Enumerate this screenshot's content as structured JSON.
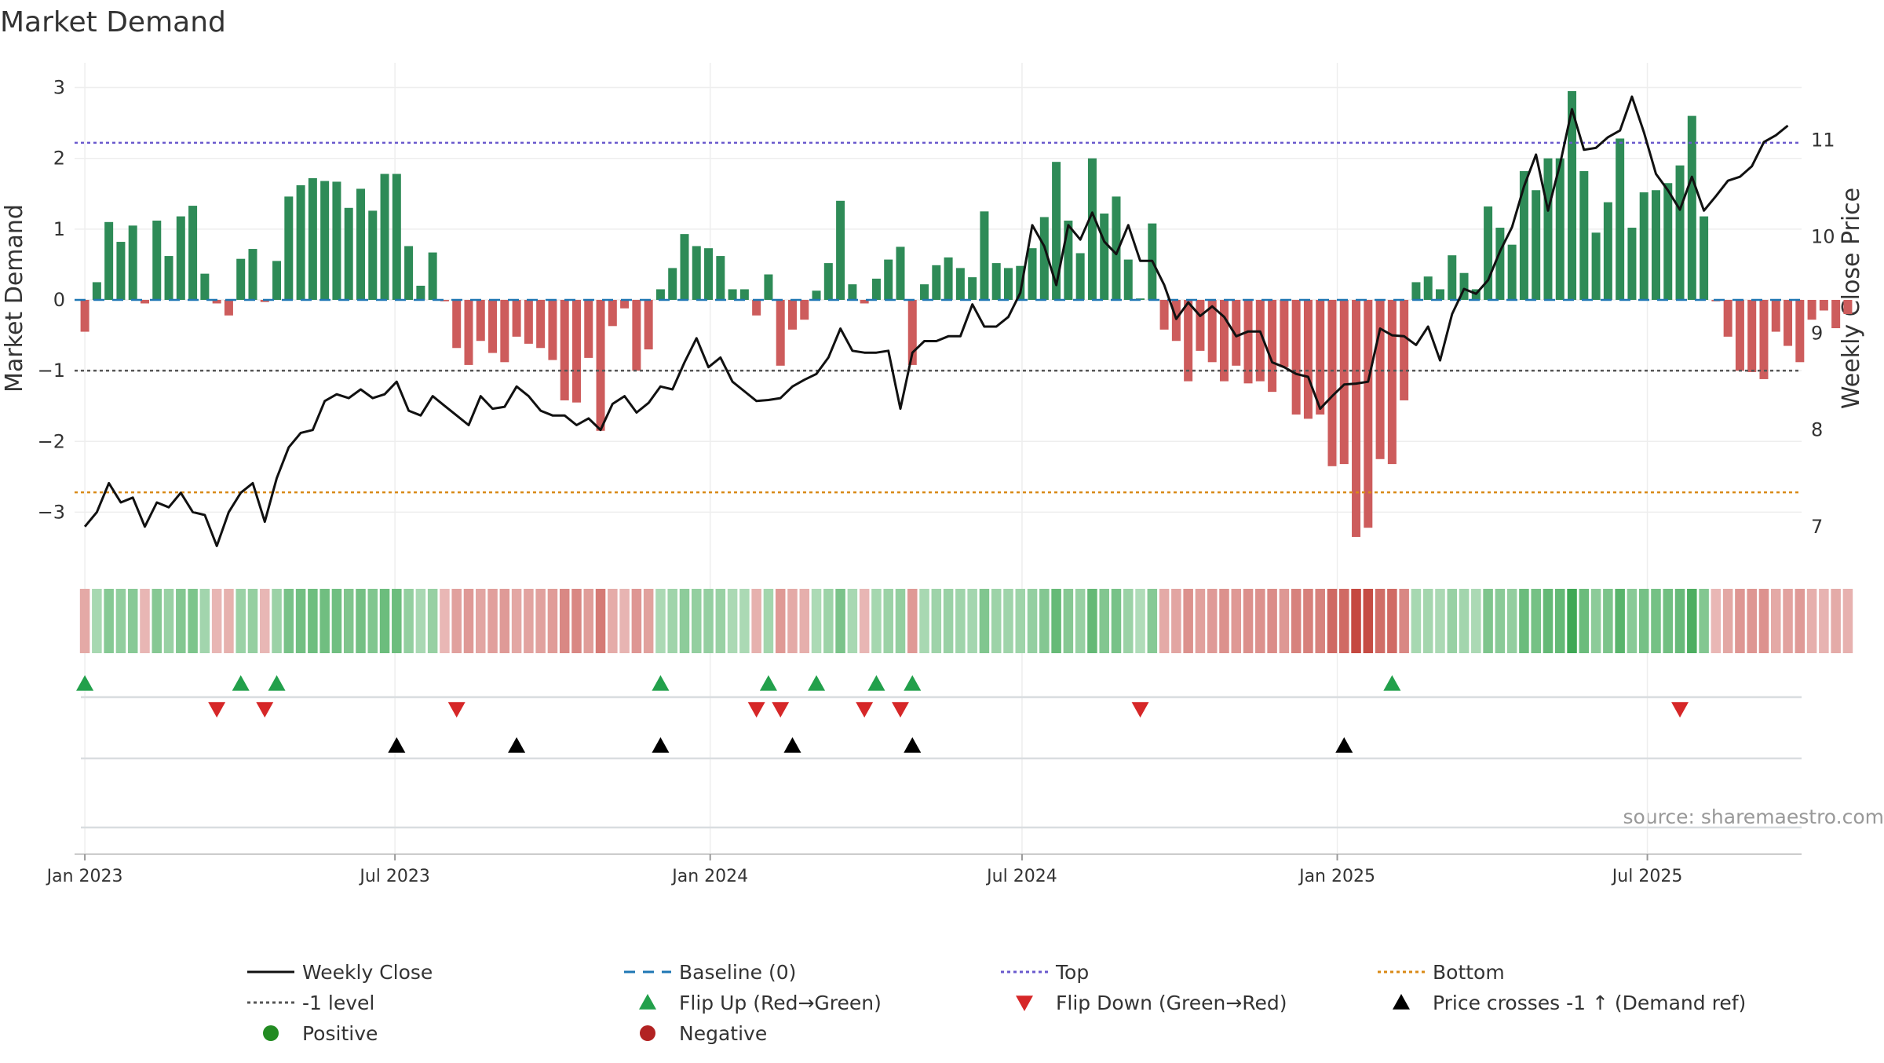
{
  "chart_data": {
    "type": "bar",
    "title": "Market Demand",
    "source_text": "source: sharemaestro.com",
    "ylabel_left": "Market Demand",
    "ylabel_right": "Weekly Close Price",
    "ylim_left": [
      -3.75,
      3.35
    ],
    "yticks_left": [
      3,
      2,
      1,
      0,
      -1,
      -2,
      -3
    ],
    "ytick_labels_left": [
      "3",
      "2",
      "1",
      "0",
      "−1",
      "−2",
      "−3"
    ],
    "ylim_right": [
      6.6,
      11.8
    ],
    "yticks_right": [
      7,
      8,
      9,
      10,
      11
    ],
    "x_range": [
      "2022-12-26",
      "2025-09-29"
    ],
    "x_ticks": [
      {
        "date": "2023-01-01",
        "label": "Jan 2023"
      },
      {
        "date": "2023-07-01",
        "label": "Jul 2023"
      },
      {
        "date": "2024-01-01",
        "label": "Jan 2024"
      },
      {
        "date": "2024-07-01",
        "label": "Jul 2024"
      },
      {
        "date": "2025-01-01",
        "label": "Jan 2025"
      },
      {
        "date": "2025-07-01",
        "label": "Jul 2025"
      }
    ],
    "week_start": "2023-01-01",
    "reference_lines": {
      "top": 2.22,
      "bottom": -2.72,
      "minus_one": -1,
      "baseline": 0
    },
    "colors": {
      "positive": "#2e8b57",
      "negative": "#cd5c5c",
      "close": "#111111",
      "baseline": "#1f77b4",
      "top": "#6a5acd",
      "bottom": "#d98a17",
      "minus_one": "#555555",
      "flip_up": "#22a04b",
      "flip_down": "#d62728",
      "cross": "#000000",
      "positive_dot": "#228b22",
      "negative_dot": "#b22222"
    },
    "series": [
      {
        "name": "Market Demand",
        "values": [
          -0.45,
          0.25,
          1.1,
          0.82,
          1.05,
          -0.05,
          1.12,
          0.62,
          1.18,
          1.33,
          0.37,
          -0.05,
          -0.22,
          0.58,
          0.72,
          -0.03,
          0.55,
          1.46,
          1.62,
          1.72,
          1.68,
          1.67,
          1.3,
          1.57,
          1.26,
          1.78,
          1.78,
          0.76,
          0.2,
          0.67,
          -0.02,
          -0.68,
          -0.92,
          -0.58,
          -0.75,
          -0.88,
          -0.52,
          -0.62,
          -0.68,
          -0.85,
          -1.42,
          -1.45,
          -0.82,
          -1.85,
          -0.37,
          -0.12,
          -1.0,
          -0.7,
          0.15,
          0.45,
          0.93,
          0.76,
          0.73,
          0.62,
          0.15,
          0.15,
          -0.22,
          0.36,
          -0.93,
          -0.42,
          -0.28,
          0.13,
          0.52,
          1.4,
          0.22,
          -0.05,
          0.3,
          0.57,
          0.75,
          -0.92,
          0.22,
          0.49,
          0.6,
          0.45,
          0.32,
          1.25,
          0.52,
          0.45,
          0.48,
          0.73,
          1.17,
          1.95,
          1.12,
          0.66,
          2.0,
          1.22,
          1.46,
          0.57,
          0.02,
          1.08,
          -0.42,
          -0.58,
          -1.15,
          -0.72,
          -0.88,
          -1.15,
          -0.93,
          -1.18,
          -1.15,
          -1.3,
          -0.95,
          -1.62,
          -1.68,
          -1.62,
          -2.35,
          -2.32,
          -3.35,
          -3.22,
          -2.25,
          -2.32,
          -1.42,
          0.25,
          0.33,
          0.15,
          0.63,
          0.38,
          0.15,
          1.32,
          1.02,
          0.78,
          1.82,
          1.55,
          2.0,
          2.0,
          2.95,
          1.82,
          0.95,
          1.38,
          2.28,
          1.02,
          1.52,
          1.55,
          1.65,
          1.9,
          2.6,
          1.18,
          -0.02,
          -0.52,
          -1.0,
          -1.02,
          -1.12,
          -0.45,
          -0.65,
          -0.88,
          -0.28,
          -0.15,
          -0.4,
          -0.2
        ]
      },
      {
        "name": "Weekly Close",
        "values": [
          7.0,
          7.15,
          7.45,
          7.25,
          7.3,
          7.0,
          7.25,
          7.2,
          7.35,
          7.15,
          7.12,
          6.8,
          7.15,
          7.35,
          7.45,
          7.05,
          7.5,
          7.82,
          7.97,
          8.0,
          8.3,
          8.37,
          8.33,
          8.42,
          8.33,
          8.37,
          8.5,
          8.2,
          8.15,
          8.35,
          8.25,
          8.15,
          8.05,
          8.35,
          8.22,
          8.24,
          8.45,
          8.35,
          8.2,
          8.15,
          8.15,
          8.05,
          8.12,
          8.0,
          8.27,
          8.35,
          8.18,
          8.28,
          8.45,
          8.42,
          8.7,
          8.95,
          8.65,
          8.75,
          8.5,
          8.4,
          8.3,
          8.31,
          8.33,
          8.45,
          8.52,
          8.58,
          8.75,
          9.05,
          8.82,
          8.8,
          8.8,
          8.82,
          8.22,
          8.8,
          8.92,
          8.92,
          8.97,
          8.97,
          9.3,
          9.07,
          9.07,
          9.17,
          9.42,
          10.12,
          9.9,
          9.5,
          10.12,
          9.97,
          10.25,
          9.95,
          9.82,
          10.12,
          9.75,
          9.75,
          9.5,
          9.15,
          9.32,
          9.18,
          9.28,
          9.17,
          8.97,
          9.02,
          9.02,
          8.7,
          8.65,
          8.58,
          8.55,
          8.22,
          8.35,
          8.47,
          8.48,
          8.5,
          9.05,
          8.98,
          8.97,
          8.88,
          9.07,
          8.72,
          9.2,
          9.46,
          9.41,
          9.55,
          9.85,
          10.1,
          10.52,
          10.85,
          10.27,
          10.75,
          11.32,
          10.9,
          10.92,
          11.03,
          11.1,
          11.45,
          11.08,
          10.65,
          10.48,
          10.28,
          10.62,
          10.27,
          10.42,
          10.58,
          10.62,
          10.73,
          10.98,
          11.05,
          11.15
        ]
      }
    ],
    "flip_up_weeks": [
      0,
      13,
      16,
      48,
      57,
      61,
      66,
      69,
      109
    ],
    "flip_down_weeks": [
      11,
      15,
      31,
      56,
      58,
      65,
      68,
      88,
      133
    ],
    "cross_up_weeks": [
      26,
      36,
      48,
      59,
      69,
      105
    ],
    "legend": [
      {
        "label": "Weekly Close",
        "kind": "line",
        "color": "#111111",
        "dash": ""
      },
      {
        "label": "Baseline (0)",
        "kind": "line",
        "color": "#1f77b4",
        "dash": "14,10"
      },
      {
        "label": "Top",
        "kind": "line",
        "color": "#6a5acd",
        "dash": "4,4"
      },
      {
        "label": "Bottom",
        "kind": "line",
        "color": "#d98a17",
        "dash": "4,4"
      },
      {
        "label": "-1 level",
        "kind": "line",
        "color": "#555555",
        "dash": "4,4"
      },
      {
        "label": "Flip Up (Red→Green)",
        "kind": "tri-up",
        "color": "#22a04b"
      },
      {
        "label": "Flip Down (Green→Red)",
        "kind": "tri-down",
        "color": "#d62728"
      },
      {
        "label": "Price crosses -1 ↑ (Demand ref)",
        "kind": "tri-up",
        "color": "#000000"
      },
      {
        "label": "Positive",
        "kind": "dot",
        "color": "#228b22"
      },
      {
        "label": "Negative",
        "kind": "dot",
        "color": "#b22222"
      }
    ]
  }
}
